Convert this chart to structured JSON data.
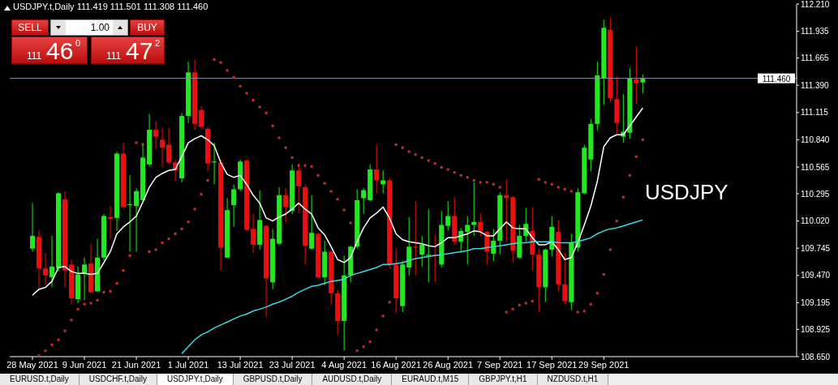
{
  "chart_data": {
    "type": "candlestick",
    "title": "USDJPY.t,Daily 111.419 111.501 111.308 111.460",
    "categories": [
      "28 May 2021",
      null,
      null,
      null,
      null,
      null,
      null,
      null,
      "9 Jun 2021",
      null,
      null,
      null,
      null,
      null,
      null,
      null,
      "21 Jun 2021",
      null,
      null,
      null,
      null,
      null,
      null,
      null,
      "1 Jul 2021",
      null,
      null,
      null,
      null,
      null,
      null,
      null,
      "13 Jul 2021",
      null,
      null,
      null,
      null,
      null,
      null,
      null,
      "23 Jul 2021",
      null,
      null,
      null,
      null,
      null,
      null,
      null,
      "4 Aug 2021",
      null,
      null,
      null,
      null,
      null,
      null,
      null,
      "16 Aug 2021",
      null,
      null,
      null,
      null,
      null,
      null,
      null,
      "26 Aug 2021",
      null,
      null,
      null,
      null,
      null,
      null,
      null,
      "7 Sep 2021",
      null,
      null,
      null,
      null,
      null,
      null,
      null,
      "17 Sep 2021",
      null,
      null,
      null,
      null,
      null,
      null,
      null,
      "29 Sep 2021",
      null,
      null,
      null,
      null,
      null,
      null
    ],
    "ohlc": [
      [
        109.74,
        110.2,
        109.71,
        109.87
      ],
      [
        109.86,
        109.93,
        109.34,
        109.54
      ],
      [
        109.54,
        109.7,
        109.37,
        109.47
      ],
      [
        109.45,
        109.87,
        109.35,
        109.56
      ],
      [
        109.54,
        110.31,
        109.51,
        110.3
      ],
      [
        110.24,
        110.32,
        109.35,
        109.52
      ],
      [
        109.58,
        109.63,
        109.18,
        109.24
      ],
      [
        109.23,
        109.56,
        109.19,
        109.48
      ],
      [
        109.49,
        109.65,
        109.22,
        109.58
      ],
      [
        109.59,
        109.79,
        109.29,
        109.3
      ],
      [
        109.31,
        109.84,
        109.3,
        109.65
      ],
      [
        109.65,
        110.09,
        109.62,
        110.07
      ],
      [
        110.06,
        110.17,
        109.84,
        110.04
      ],
      [
        110.05,
        110.72,
        109.92,
        110.7
      ],
      [
        110.7,
        110.81,
        110.14,
        110.16
      ],
      [
        110.18,
        110.48,
        109.71,
        110.19
      ],
      [
        110.17,
        110.35,
        109.71,
        110.32
      ],
      [
        110.23,
        110.81,
        110.21,
        110.66
      ],
      [
        110.59,
        111.1,
        110.57,
        110.94
      ],
      [
        110.94,
        111.03,
        110.75,
        110.87
      ],
      [
        110.84,
        110.96,
        110.56,
        110.76
      ],
      [
        110.79,
        110.96,
        110.59,
        110.61
      ],
      [
        110.61,
        110.64,
        110.42,
        110.53
      ],
      [
        110.45,
        111.11,
        110.41,
        111.08
      ],
      [
        111.08,
        111.63,
        111.01,
        111.52
      ],
      [
        111.52,
        111.65,
        110.94,
        111.0
      ],
      [
        111.14,
        111.18,
        110.95,
        110.97
      ],
      [
        110.95,
        110.97,
        110.52,
        110.6
      ],
      [
        110.61,
        110.81,
        110.39,
        110.62
      ],
      [
        110.61,
        110.64,
        109.52,
        109.75
      ],
      [
        109.65,
        110.25,
        109.64,
        110.13
      ],
      [
        110.18,
        110.39,
        109.96,
        110.34
      ],
      [
        110.34,
        110.64,
        110.32,
        110.62
      ],
      [
        110.63,
        110.64,
        109.92,
        109.93
      ],
      [
        109.94,
        110.09,
        109.7,
        109.78
      ],
      [
        109.78,
        110.33,
        109.73,
        110.03
      ],
      [
        109.97,
        109.98,
        109.05,
        109.44
      ],
      [
        109.4,
        109.94,
        109.33,
        109.84
      ],
      [
        109.79,
        110.36,
        109.78,
        110.28
      ],
      [
        110.28,
        110.35,
        110.0,
        110.16
      ],
      [
        110.12,
        110.59,
        110.09,
        110.53
      ],
      [
        110.53,
        110.6,
        110.1,
        110.37
      ],
      [
        110.36,
        110.39,
        109.58,
        109.77
      ],
      [
        109.74,
        110.28,
        109.73,
        109.9
      ],
      [
        109.89,
        109.9,
        109.44,
        109.45
      ],
      [
        109.45,
        109.82,
        109.37,
        109.71
      ],
      [
        109.71,
        109.72,
        109.18,
        109.29
      ],
      [
        109.29,
        109.33,
        108.87,
        109.01
      ],
      [
        109.01,
        109.67,
        108.71,
        109.47
      ],
      [
        109.47,
        109.77,
        109.4,
        109.76
      ],
      [
        109.76,
        110.34,
        109.74,
        110.23
      ],
      [
        110.25,
        110.35,
        110.09,
        110.33
      ],
      [
        110.23,
        110.59,
        110.22,
        110.54
      ],
      [
        110.54,
        110.79,
        110.3,
        110.43
      ],
      [
        110.39,
        110.53,
        110.3,
        110.43
      ],
      [
        110.43,
        110.45,
        109.54,
        109.58
      ],
      [
        109.58,
        109.74,
        109.09,
        109.24
      ],
      [
        109.16,
        109.62,
        109.1,
        109.58
      ],
      [
        109.55,
        110.06,
        109.47,
        109.76
      ],
      [
        109.76,
        110.22,
        109.47,
        109.75
      ],
      [
        109.68,
        109.87,
        109.56,
        109.78
      ],
      [
        109.67,
        110.14,
        109.4,
        109.68
      ],
      [
        109.68,
        109.88,
        109.4,
        109.67
      ],
      [
        109.58,
        110.12,
        109.55,
        109.98
      ],
      [
        109.97,
        110.22,
        109.92,
        110.07
      ],
      [
        110.07,
        110.26,
        109.78,
        109.81
      ],
      [
        109.81,
        109.95,
        109.7,
        109.92
      ],
      [
        109.91,
        110.07,
        109.58,
        109.98
      ],
      [
        109.98,
        110.41,
        109.87,
        110.01
      ],
      [
        110.01,
        110.1,
        109.87,
        109.92
      ],
      [
        109.91,
        109.92,
        109.58,
        109.71
      ],
      [
        109.69,
        109.94,
        109.61,
        109.82
      ],
      [
        109.82,
        110.31,
        109.68,
        110.28
      ],
      [
        110.28,
        110.44,
        109.81,
        110.25
      ],
      [
        110.26,
        110.27,
        109.6,
        109.72
      ],
      [
        109.65,
        109.98,
        109.64,
        109.87
      ],
      [
        109.87,
        110.15,
        109.81,
        109.99
      ],
      [
        109.92,
        110.16,
        109.52,
        109.68
      ],
      [
        109.68,
        109.74,
        109.1,
        109.35
      ],
      [
        109.35,
        109.74,
        109.2,
        109.73
      ],
      [
        109.73,
        110.07,
        109.66,
        109.96
      ],
      [
        109.91,
        110.03,
        109.31,
        109.38
      ],
      [
        109.38,
        109.7,
        109.18,
        109.21
      ],
      [
        109.2,
        109.89,
        109.12,
        109.8
      ],
      [
        109.75,
        110.35,
        109.71,
        110.31
      ],
      [
        110.3,
        110.79,
        110.29,
        110.76
      ],
      [
        110.64,
        111.05,
        110.52,
        111.0
      ],
      [
        111.0,
        111.63,
        110.93,
        111.49
      ],
      [
        111.46,
        112.05,
        111.19,
        111.97
      ],
      [
        111.95,
        112.07,
        111.22,
        111.26
      ],
      [
        111.25,
        111.48,
        110.9,
        111.01
      ],
      [
        110.87,
        111.3,
        110.81,
        110.92
      ],
      [
        110.91,
        111.56,
        110.85,
        111.46
      ],
      [
        111.45,
        111.78,
        111.2,
        111.41
      ],
      [
        111.419,
        111.501,
        111.308,
        111.46
      ]
    ],
    "colors": [
      "#22e822",
      "#e81010",
      "#e81010",
      "#22e822",
      "#22e822",
      "#e81010",
      "#e81010",
      "#22e822",
      "#22e822",
      "#e81010",
      "#22e822",
      "#22e822",
      "#e81010",
      "#22e822",
      "#e81010",
      "#22e822",
      "#22e822",
      "#22e822",
      "#22e822",
      "#e81010",
      "#e81010",
      "#e81010",
      "#e81010",
      "#22e822",
      "#22e822",
      "#e81010",
      "#e81010",
      "#e81010",
      "#22e822",
      "#e81010",
      "#22e822",
      "#22e822",
      "#22e822",
      "#e81010",
      "#e81010",
      "#22e822",
      "#e81010",
      "#22e822",
      "#22e822",
      "#e81010",
      "#22e822",
      "#e81010",
      "#e81010",
      "#22e822",
      "#e81010",
      "#22e822",
      "#e81010",
      "#e81010",
      "#22e822",
      "#22e822",
      "#22e822",
      "#22e822",
      "#22e822",
      "#e81010",
      "#22e822",
      "#e81010",
      "#e81010",
      "#22e822",
      "#22e822",
      "#e81010",
      "#22e822",
      "#22e822",
      "#e81010",
      "#22e822",
      "#22e822",
      "#e81010",
      "#22e822",
      "#22e822",
      "#22e822",
      "#e81010",
      "#e81010",
      "#22e822",
      "#22e822",
      "#e81010",
      "#e81010",
      "#22e822",
      "#22e822",
      "#e81010",
      "#e81010",
      "#22e822",
      "#22e822",
      "#e81010",
      "#e81010",
      "#22e822",
      "#22e822",
      "#22e822",
      "#22e822",
      "#22e822",
      "#22e822",
      "#e81010",
      "#e81010",
      "#22e822",
      "#22e822",
      "#e81010",
      "#22e822"
    ],
    "series": [
      {
        "type": "line",
        "color": "#ffffff",
        "marker": "none",
        "values": [
          109.27,
          109.33,
          109.35,
          109.41,
          109.55,
          109.56,
          109.51,
          109.49,
          109.49,
          109.48,
          109.49,
          109.6,
          109.71,
          109.89,
          109.96,
          110.01,
          110.07,
          110.21,
          110.36,
          110.46,
          110.5,
          110.53,
          110.54,
          110.67,
          110.81,
          110.85,
          110.88,
          110.84,
          110.78,
          110.61,
          110.49,
          110.46,
          110.48,
          110.39,
          110.28,
          110.2,
          110.05,
          110.02,
          110.06,
          110.09,
          110.14,
          110.2,
          110.14,
          110.09,
          109.95,
          109.88,
          109.76,
          109.63,
          109.6,
          109.65,
          109.81,
          109.95,
          110.05,
          110.1,
          110.16,
          110.05,
          109.89,
          109.83,
          109.81,
          109.8,
          109.79,
          109.77,
          109.76,
          109.8,
          109.85,
          109.85,
          109.87,
          109.89,
          109.92,
          109.91,
          109.87,
          109.87,
          109.94,
          110.01,
          109.95,
          109.94,
          109.94,
          109.85,
          109.78,
          109.78,
          109.81,
          109.73,
          109.63,
          109.65,
          109.8,
          109.98,
          110.17,
          110.42,
          110.77,
          110.86,
          110.89,
          110.89,
          110.98,
          111.07,
          111.16
        ]
      },
      {
        "type": "line",
        "color": "#3fd8e0",
        "marker": "none",
        "values": [
          null,
          null,
          null,
          null,
          null,
          null,
          null,
          null,
          null,
          null,
          null,
          null,
          null,
          null,
          null,
          null,
          null,
          null,
          null,
          null,
          null,
          null,
          null,
          108.68,
          108.75,
          108.82,
          108.87,
          108.9,
          108.94,
          108.97,
          109.0,
          109.03,
          109.06,
          109.08,
          109.11,
          109.13,
          109.15,
          109.18,
          109.2,
          109.23,
          109.26,
          109.3,
          109.33,
          109.36,
          109.37,
          109.39,
          109.41,
          109.42,
          109.43,
          109.47,
          109.49,
          109.51,
          109.53,
          109.55,
          109.58,
          109.58,
          109.59,
          109.6,
          109.62,
          109.64,
          109.65,
          109.66,
          109.67,
          109.68,
          109.69,
          109.7,
          109.71,
          109.72,
          109.74,
          109.74,
          109.75,
          109.76,
          109.77,
          109.78,
          109.79,
          109.8,
          109.8,
          109.81,
          109.81,
          109.81,
          109.81,
          109.8,
          109.8,
          109.8,
          109.81,
          109.83,
          109.85,
          109.89,
          109.92,
          109.94,
          109.95,
          109.97,
          109.99,
          110.01,
          110.03
        ]
      },
      {
        "type": "scatter",
        "color": "#d42a2a",
        "marker": "square",
        "values": [
          null,
          108.66,
          108.71,
          108.77,
          108.82,
          108.91,
          109.02,
          109.13,
          109.18,
          109.19,
          109.22,
          109.3,
          109.31,
          109.39,
          109.52,
          109.67,
          110.81,
          110.79,
          109.71,
          109.73,
          109.8,
          109.84,
          109.89,
          109.94,
          110.01,
          110.14,
          110.29,
          110.43,
          111.65,
          111.62,
          111.54,
          111.47,
          111.38,
          111.31,
          111.24,
          111.17,
          111.11,
          110.98,
          110.86,
          110.76,
          110.66,
          110.58,
          110.58,
          110.57,
          110.48,
          110.4,
          110.32,
          110.24,
          110.13,
          110.0,
          108.71,
          108.75,
          108.8,
          108.92,
          109.06,
          109.2,
          110.79,
          110.76,
          110.72,
          110.69,
          110.66,
          110.63,
          110.6,
          110.56,
          110.54,
          110.51,
          110.48,
          110.46,
          110.43,
          110.41,
          110.41,
          110.39,
          110.36,
          109.1,
          109.13,
          109.17,
          109.19,
          109.21,
          110.44,
          110.41,
          110.39,
          110.36,
          110.34,
          110.32,
          109.1,
          109.11,
          109.18,
          109.29,
          109.48,
          109.73,
          110.02,
          110.26,
          110.48,
          110.67,
          110.84
        ]
      }
    ],
    "ylim": [
      108.65,
      112.21
    ],
    "yticks": [
      {
        "value": 108.65,
        "label": "108.650"
      },
      {
        "value": 108.925,
        "label": "108.925"
      },
      {
        "value": 109.195,
        "label": "109.195"
      },
      {
        "value": 109.47,
        "label": "109.470"
      },
      {
        "value": 109.745,
        "label": "109.745"
      },
      {
        "value": 110.02,
        "label": "110.020"
      },
      {
        "value": 110.295,
        "label": "110.295"
      },
      {
        "value": 110.565,
        "label": "110.565"
      },
      {
        "value": 110.84,
        "label": "110.840"
      },
      {
        "value": 111.115,
        "label": "111.115"
      },
      {
        "value": 111.39,
        "label": "111.390"
      },
      {
        "value": 111.665,
        "label": "111.665"
      },
      {
        "value": 111.935,
        "label": "111.935"
      },
      {
        "value": 112.21,
        "label": "112.210"
      }
    ],
    "ref_lines": [
      {
        "axis": "y",
        "value": 111.46,
        "label": "111.460",
        "color": "#8a94a8"
      }
    ],
    "annotations": [
      "SELL",
      "1.00",
      "BUY",
      "111",
      "46",
      "0",
      "111",
      "47",
      "2",
      "USDJPY",
      "EURUSD.t,Daily",
      "USDCHF.t,Daily",
      "USDJPY.t,Daily",
      "GBPUSD.t,Daily",
      "AUDUSD.t,Daily",
      "EURAUD.t,M15",
      "GBPJPY.t,H1",
      "NZDUSD.t,H1"
    ],
    "grid": false,
    "legend": false
  }
}
